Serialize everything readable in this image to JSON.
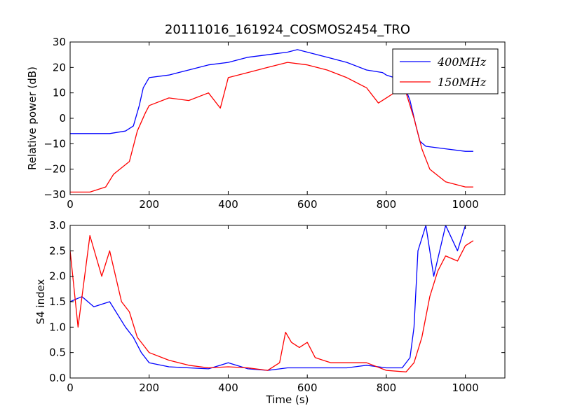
{
  "chart_data": [
    {
      "type": "line",
      "title": "20111016_161924_COSMOS2454_TRO",
      "xlabel": "",
      "ylabel": "Relative power (dB)",
      "xlim": [
        0,
        1100
      ],
      "ylim": [
        -30,
        30
      ],
      "xticks": [
        "0",
        "200",
        "400",
        "600",
        "800",
        "1000"
      ],
      "yticks": [
        "−30",
        "−20",
        "−10",
        "0",
        "10",
        "20",
        "30"
      ],
      "legend": {
        "placement": "upper-right",
        "entries": [
          "400MHz",
          "150MHz"
        ]
      },
      "series": [
        {
          "name": "400MHz",
          "color": "#0000ff",
          "x": [
            0,
            50,
            100,
            140,
            160,
            175,
            185,
            200,
            250,
            300,
            350,
            400,
            450,
            500,
            550,
            575,
            600,
            650,
            700,
            750,
            790,
            800,
            820,
            845,
            860,
            875,
            885,
            900,
            950,
            1000,
            1020
          ],
          "y": [
            -6,
            -6,
            -6,
            -5,
            -3,
            5,
            12,
            16,
            17,
            19,
            21,
            22,
            24,
            25,
            26,
            27,
            26,
            24,
            22,
            19,
            18,
            17,
            16,
            13,
            7,
            -3,
            -9,
            -11,
            -12,
            -13,
            -13
          ]
        },
        {
          "name": "150MHz",
          "color": "#ff0000",
          "x": [
            0,
            50,
            90,
            110,
            150,
            170,
            190,
            200,
            250,
            300,
            350,
            380,
            400,
            450,
            500,
            550,
            600,
            650,
            700,
            750,
            780,
            800,
            830,
            850,
            870,
            890,
            910,
            950,
            1000,
            1020
          ],
          "y": [
            -29,
            -29,
            -27,
            -22,
            -17,
            -5,
            2,
            5,
            8,
            7,
            10,
            4,
            16,
            18,
            20,
            22,
            21,
            19,
            16,
            12,
            6,
            8,
            11,
            10,
            0,
            -12,
            -20,
            -25,
            -27,
            -27
          ]
        }
      ]
    },
    {
      "type": "line",
      "title": "",
      "xlabel": "Time (s)",
      "ylabel": "S4 index",
      "xlim": [
        0,
        1100
      ],
      "ylim": [
        0,
        3
      ],
      "xticks": [
        "0",
        "200",
        "400",
        "600",
        "800",
        "1000"
      ],
      "yticks": [
        "0.0",
        "0.5",
        "1.0",
        "1.5",
        "2.0",
        "2.5",
        "3.0"
      ],
      "series": [
        {
          "name": "400MHz",
          "color": "#0000ff",
          "x": [
            0,
            30,
            60,
            100,
            140,
            160,
            180,
            200,
            250,
            300,
            350,
            380,
            400,
            450,
            500,
            550,
            600,
            650,
            700,
            750,
            800,
            840,
            860,
            870,
            880,
            900,
            920,
            950,
            980,
            1000,
            1010
          ],
          "y": [
            1.5,
            1.6,
            1.4,
            1.5,
            1.0,
            0.8,
            0.5,
            0.3,
            0.22,
            0.2,
            0.18,
            0.25,
            0.3,
            0.18,
            0.15,
            0.2,
            0.2,
            0.2,
            0.2,
            0.25,
            0.2,
            0.2,
            0.4,
            1.0,
            2.5,
            3.0,
            2.0,
            3.0,
            2.5,
            3.0,
            3.0
          ]
        },
        {
          "name": "150MHz",
          "color": "#ff0000",
          "x": [
            0,
            20,
            50,
            80,
            100,
            130,
            150,
            170,
            190,
            200,
            250,
            300,
            350,
            400,
            450,
            500,
            530,
            545,
            560,
            580,
            600,
            620,
            640,
            660,
            700,
            750,
            800,
            850,
            870,
            890,
            910,
            930,
            950,
            980,
            1000,
            1020
          ],
          "y": [
            2.5,
            1.0,
            2.8,
            2.0,
            2.5,
            1.5,
            1.3,
            0.8,
            0.6,
            0.5,
            0.35,
            0.25,
            0.2,
            0.22,
            0.2,
            0.15,
            0.3,
            0.9,
            0.7,
            0.6,
            0.7,
            0.4,
            0.35,
            0.3,
            0.3,
            0.3,
            0.15,
            0.12,
            0.3,
            0.8,
            1.6,
            2.1,
            2.4,
            2.3,
            2.6,
            2.7
          ]
        }
      ]
    }
  ]
}
